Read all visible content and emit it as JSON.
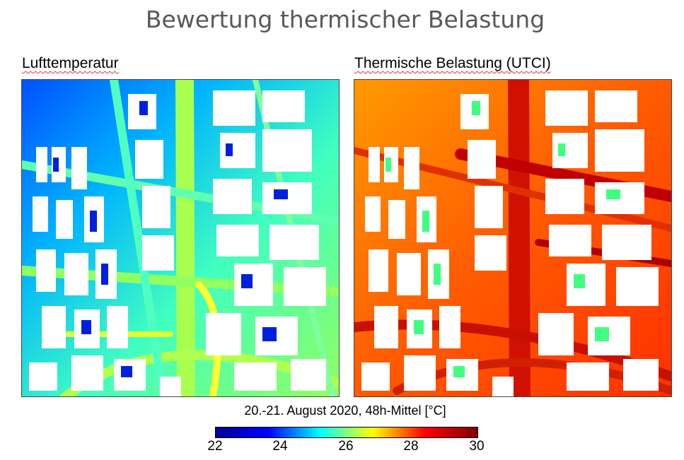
{
  "title": "Bewertung thermischer Belastung",
  "panels": [
    {
      "title": "Lufttemperatur"
    },
    {
      "title": "Thermische Belastung (UTCI)"
    }
  ],
  "colorbar": {
    "caption": "20.-21. August 2020, 48h-Mittel [°C]",
    "ticks": [
      "22",
      "24",
      "26",
      "28",
      "30"
    ],
    "colormap": [
      "#00008f",
      "#0000ff",
      "#00ffff",
      "#ffff00",
      "#ff0000",
      "#800000"
    ]
  },
  "chart_data": [
    {
      "type": "heatmap",
      "title": "Lufttemperatur",
      "colorscale_range": [
        22,
        30
      ],
      "unit": "°C"
    },
    {
      "type": "heatmap",
      "title": "Thermische Belastung (UTCI)",
      "colorscale_range": [
        22,
        30
      ],
      "unit": "°C"
    }
  ]
}
